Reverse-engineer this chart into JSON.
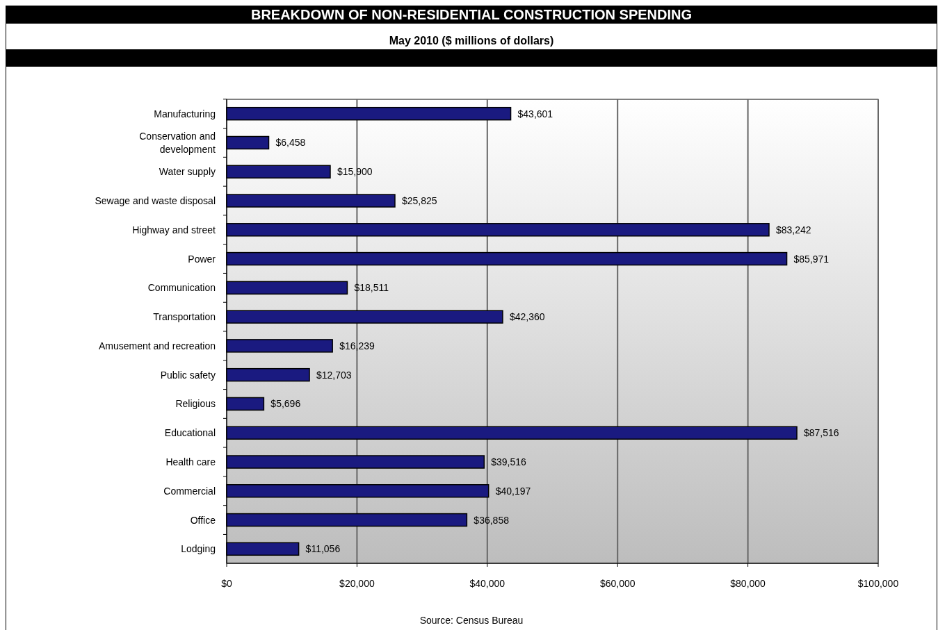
{
  "chart_data": {
    "type": "bar",
    "orientation": "horizontal",
    "title": "BREAKDOWN OF NON-RESIDENTIAL CONSTRUCTION SPENDING",
    "subtitle": "May 2010 ($ millions of dollars)",
    "categories": [
      "Manufacturing",
      "Conservation and development",
      "Water supply",
      "Sewage and waste disposal",
      "Highway and street",
      "Power",
      "Communication",
      "Transportation",
      "Amusement and recreation",
      "Public safety",
      "Religious",
      "Educational",
      "Health care",
      "Commercial",
      "Office",
      "Lodging"
    ],
    "values": [
      43601,
      6458,
      15900,
      25825,
      83242,
      85971,
      18511,
      42360,
      16239,
      12703,
      5696,
      87516,
      39516,
      40197,
      36858,
      11056
    ],
    "value_labels": [
      "$43,601",
      "$6,458",
      "$15,900",
      "$25,825",
      "$83,242",
      "$85,971",
      "$18,511",
      "$42,360",
      "$16,239",
      "$12,703",
      "$5,696",
      "$87,516",
      "$39,516",
      "$40,197",
      "$36,858",
      "$11,056"
    ],
    "color": "#1a1a80",
    "xlim": [
      0,
      100000
    ],
    "xticks": [
      {
        "value": 0,
        "label": "$0"
      },
      {
        "value": 20000,
        "label": "$20,000"
      },
      {
        "value": 40000,
        "label": "$40,000"
      },
      {
        "value": 60000,
        "label": "$60,000"
      },
      {
        "value": 80000,
        "label": "$80,000"
      },
      {
        "value": 100000,
        "label": "$100,000"
      }
    ],
    "grid": "x",
    "annotations": [
      "Source: Census Bureau"
    ]
  }
}
